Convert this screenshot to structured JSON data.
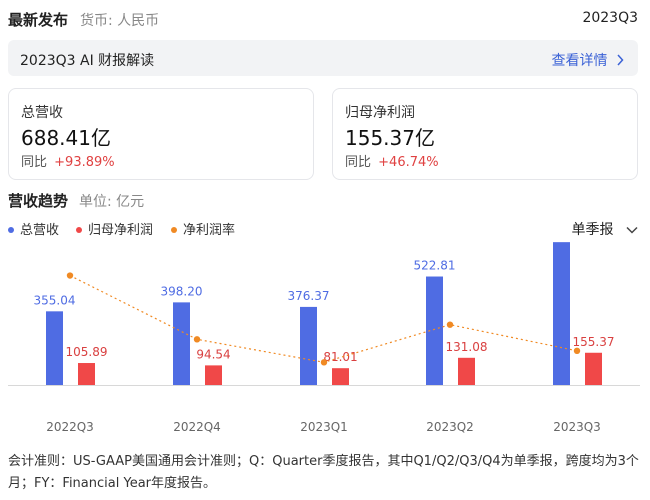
{
  "header": {
    "title": "最新发布",
    "currency": "货币: 人民币",
    "period": "2023Q3"
  },
  "ai_bar": {
    "label": "2023Q3 AI 财报解读",
    "link": "查看详情",
    "link_icon": "chevron-right-icon"
  },
  "cards": [
    {
      "label": "总营收",
      "value": "688.41亿",
      "yoy_label": "同比",
      "yoy_value": "+93.89%"
    },
    {
      "label": "归母净利润",
      "value": "155.37亿",
      "yoy_label": "同比",
      "yoy_value": "+46.74%"
    }
  ],
  "trend": {
    "title": "营收趋势",
    "unit": "单位: 亿元",
    "period_select": "单季报",
    "period_select_icon": "chevron-down-icon"
  },
  "colors": {
    "revenue": "#4f6ce3",
    "net_profit": "#f04848",
    "net_margin": "#f08a24",
    "link": "#3b62d6",
    "increase": "#e04141"
  },
  "chart_data": {
    "type": "bar",
    "categories": [
      "2022Q3",
      "2022Q4",
      "2023Q1",
      "2023Q2",
      "2023Q3"
    ],
    "series": [
      {
        "name": "总营收",
        "kind": "bar",
        "values": [
          355.04,
          398.2,
          376.37,
          522.81,
          688.41
        ],
        "labels": [
          "355.04",
          "398.20",
          "376.37",
          "522.81",
          "688.41"
        ]
      },
      {
        "name": "归母净利润",
        "kind": "bar",
        "values": [
          105.89,
          94.54,
          81.01,
          131.08,
          155.37
        ],
        "labels": [
          "105.89",
          "94.54",
          "81.01",
          "131.08",
          "155.37"
        ]
      },
      {
        "name": "净利润率",
        "kind": "line",
        "values": [
          29.8,
          23.7,
          21.5,
          25.1,
          22.6
        ]
      }
    ],
    "ylim": [
      0,
      720
    ],
    "legend_position": "top-left",
    "grid": false
  },
  "footnote": "会计准则：US-GAAP美国通用会计准则；Q：Quarter季度报告，其中Q1/Q2/Q3/Q4为单季报，跨度均为3个月；FY：Financial Year年度报告。"
}
